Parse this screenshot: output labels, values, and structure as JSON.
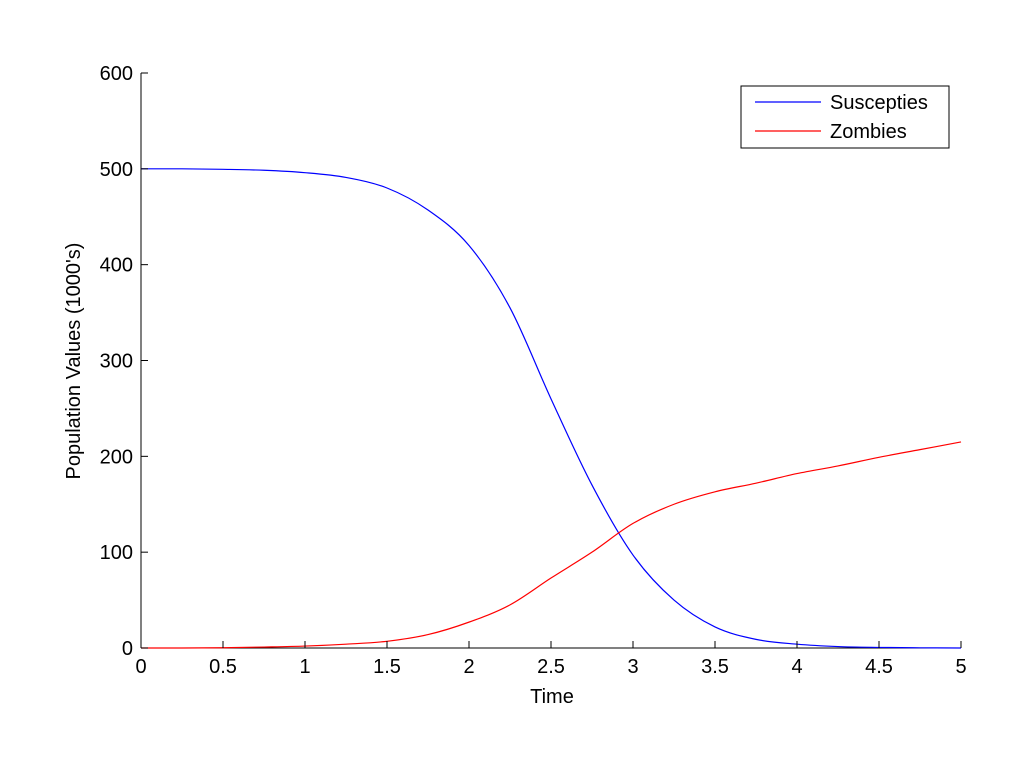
{
  "chart_data": {
    "type": "line",
    "title": "",
    "xlabel": "Time",
    "ylabel": "Population Values (1000's)",
    "xlim": [
      0,
      5
    ],
    "ylim": [
      0,
      600
    ],
    "xticks": [
      0,
      0.5,
      1,
      1.5,
      2,
      2.5,
      3,
      3.5,
      4,
      4.5,
      5
    ],
    "xtick_labels": [
      "0",
      "0.5",
      "1",
      "1.5",
      "2",
      "2.5",
      "3",
      "3.5",
      "4",
      "4.5",
      "5"
    ],
    "yticks": [
      0,
      100,
      200,
      300,
      400,
      500,
      600
    ],
    "ytick_labels": [
      "0",
      "100",
      "200",
      "300",
      "400",
      "500",
      "600"
    ],
    "grid": false,
    "legend_position": "top-right",
    "x": [
      0,
      0.25,
      0.5,
      0.75,
      1,
      1.25,
      1.5,
      1.75,
      2,
      2.25,
      2.5,
      2.75,
      3,
      3.25,
      3.5,
      3.75,
      4,
      4.25,
      4.5,
      4.75,
      5
    ],
    "series": [
      {
        "name": "Suscepties",
        "color": "#0000ff",
        "values": [
          500,
          500,
          499.5,
          498.5,
          496,
          491,
          480,
          457,
          420,
          355,
          260,
          170,
          97,
          50,
          22,
          9,
          4,
          1.5,
          0.6,
          0.2,
          0
        ]
      },
      {
        "name": "Zombies",
        "color": "#ff0000",
        "values": [
          0,
          0,
          0.3,
          1,
          2,
          4,
          7,
          14,
          27,
          45,
          73,
          100,
          130,
          150,
          163,
          172,
          182,
          190,
          199,
          207,
          215
        ]
      }
    ]
  }
}
